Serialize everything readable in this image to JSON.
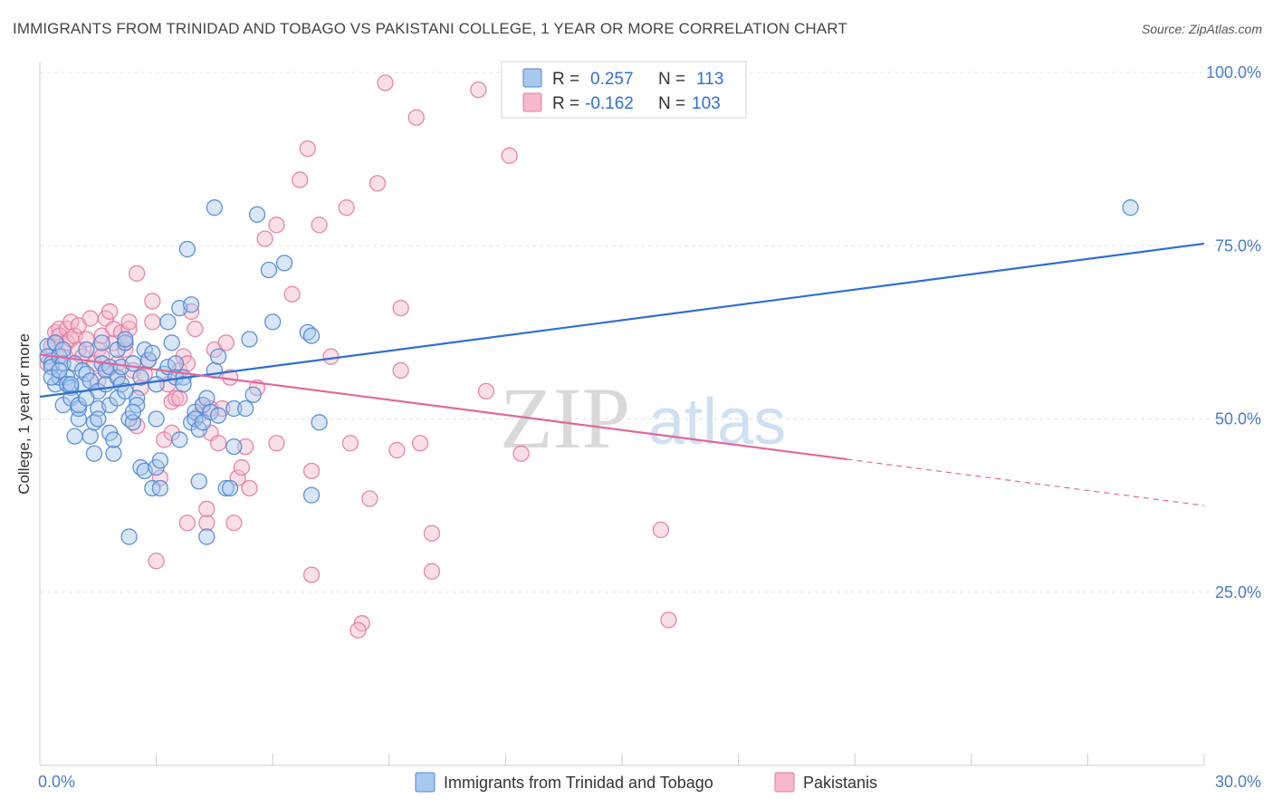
{
  "title": "IMMIGRANTS FROM TRINIDAD AND TOBAGO VS PAKISTANI COLLEGE, 1 YEAR OR MORE CORRELATION CHART",
  "source": "Source: ZipAtlas.com",
  "watermark": {
    "zip": "ZIP",
    "atlas": "atlas"
  },
  "colors": {
    "blue_fill": "#a9c8ee",
    "blue_stroke": "#4f86d3",
    "blue_line": "#2f6fd1",
    "pink_fill": "#f5b8cc",
    "pink_stroke": "#e27ba0",
    "pink_line": "#e0689a",
    "grid": "#e3e3e3",
    "tick_text": "#4a7cc9"
  },
  "legend_box": {
    "rows": [
      {
        "r_label": "R =",
        "r_value": "0.257",
        "n_label": "N =",
        "n_value": "113",
        "color": "blue"
      },
      {
        "r_label": "R =",
        "r_value": "-0.162",
        "n_label": "N =",
        "n_value": "103",
        "color": "pink"
      }
    ]
  },
  "bottom_legend": [
    {
      "label": "Immigrants from Trinidad and Tobago",
      "color": "blue"
    },
    {
      "label": "Pakistanis",
      "color": "pink"
    }
  ],
  "chart_data": {
    "type": "scatter",
    "xlabel": "",
    "ylabel": "College, 1 year or more",
    "xlim": [
      0,
      30
    ],
    "ylim": [
      0,
      105
    ],
    "x_tick_labels": [
      {
        "value": 0,
        "label": "0.0%"
      },
      {
        "value": 30,
        "label": "30.0%"
      }
    ],
    "y_tick_labels": [
      {
        "value": 25,
        "label": "25.0%"
      },
      {
        "value": 50,
        "label": "50.0%"
      },
      {
        "value": 75,
        "label": "75.0%"
      },
      {
        "value": 100,
        "label": "100.0%"
      }
    ],
    "x_minor_ticks": [
      0,
      3,
      6,
      9,
      12,
      15,
      18,
      21,
      24,
      27,
      30
    ],
    "grid": true,
    "series": [
      {
        "name": "Immigrants from Trinidad and Tobago",
        "color": "blue",
        "trend": {
          "x": [
            0,
            30
          ],
          "y": [
            53.2,
            75.3
          ],
          "dashed_from": null
        },
        "points": [
          [
            0.2,
            60.5
          ],
          [
            0.2,
            59
          ],
          [
            0.3,
            58
          ],
          [
            0.3,
            57.5
          ],
          [
            0.4,
            61
          ],
          [
            0.4,
            55
          ],
          [
            0.5,
            59
          ],
          [
            0.5,
            56
          ],
          [
            0.6,
            58
          ],
          [
            0.6,
            52
          ],
          [
            0.7,
            56
          ],
          [
            0.7,
            55
          ],
          [
            0.8,
            54.5
          ],
          [
            0.8,
            53
          ],
          [
            0.9,
            47.5
          ],
          [
            0.9,
            58
          ],
          [
            1.0,
            50
          ],
          [
            1.0,
            51.5
          ],
          [
            1.1,
            57
          ],
          [
            1.1,
            55
          ],
          [
            1.2,
            56.5
          ],
          [
            1.2,
            60
          ],
          [
            1.3,
            55.5
          ],
          [
            1.3,
            47.5
          ],
          [
            1.4,
            49.5
          ],
          [
            1.4,
            45
          ],
          [
            1.5,
            51.5
          ],
          [
            1.5,
            54
          ],
          [
            1.6,
            58
          ],
          [
            1.6,
            61
          ],
          [
            1.7,
            57
          ],
          [
            1.7,
            55
          ],
          [
            1.8,
            57.5
          ],
          [
            1.8,
            48
          ],
          [
            1.9,
            45
          ],
          [
            1.9,
            47
          ],
          [
            2.0,
            60
          ],
          [
            2.0,
            56
          ],
          [
            2.1,
            55
          ],
          [
            2.1,
            57.5
          ],
          [
            2.2,
            61
          ],
          [
            2.2,
            61.5
          ],
          [
            2.3,
            50
          ],
          [
            2.3,
            33
          ],
          [
            2.4,
            49.5
          ],
          [
            2.4,
            58
          ],
          [
            2.5,
            53
          ],
          [
            2.5,
            52
          ],
          [
            2.6,
            56
          ],
          [
            2.6,
            43
          ],
          [
            2.7,
            60
          ],
          [
            2.7,
            42.5
          ],
          [
            2.8,
            58.5
          ],
          [
            2.9,
            59.5
          ],
          [
            2.9,
            40
          ],
          [
            3.0,
            43
          ],
          [
            3.0,
            50
          ],
          [
            3.1,
            44
          ],
          [
            3.1,
            40
          ],
          [
            3.2,
            56.5
          ],
          [
            3.3,
            57.5
          ],
          [
            3.3,
            64
          ],
          [
            3.4,
            61
          ],
          [
            3.5,
            58
          ],
          [
            3.5,
            56
          ],
          [
            3.6,
            66
          ],
          [
            3.6,
            47
          ],
          [
            3.7,
            56
          ],
          [
            3.7,
            55
          ],
          [
            3.8,
            74.5
          ],
          [
            3.9,
            66.5
          ],
          [
            3.9,
            49.5
          ],
          [
            4.0,
            51
          ],
          [
            4.0,
            50
          ],
          [
            4.1,
            48.5
          ],
          [
            4.1,
            41
          ],
          [
            4.2,
            52
          ],
          [
            4.2,
            49.5
          ],
          [
            4.3,
            33
          ],
          [
            4.3,
            53
          ],
          [
            4.4,
            51
          ],
          [
            4.5,
            57
          ],
          [
            4.5,
            80.5
          ],
          [
            4.6,
            59
          ],
          [
            4.6,
            50.5
          ],
          [
            4.8,
            40
          ],
          [
            4.9,
            40
          ],
          [
            5.0,
            51.5
          ],
          [
            5.0,
            46
          ],
          [
            5.3,
            51.5
          ],
          [
            5.4,
            61.5
          ],
          [
            5.5,
            53.5
          ],
          [
            5.6,
            79.5
          ],
          [
            5.9,
            71.5
          ],
          [
            6.0,
            64
          ],
          [
            6.3,
            72.5
          ],
          [
            6.9,
            62.5
          ],
          [
            7.0,
            39
          ],
          [
            7.0,
            62
          ],
          [
            7.2,
            49.5
          ],
          [
            28.1,
            80.5
          ],
          [
            0.3,
            56
          ],
          [
            0.5,
            57
          ],
          [
            0.6,
            60
          ],
          [
            0.8,
            55
          ],
          [
            1.0,
            52
          ],
          [
            1.2,
            53
          ],
          [
            1.5,
            50
          ],
          [
            1.8,
            52
          ],
          [
            2.0,
            53
          ],
          [
            2.2,
            54
          ],
          [
            2.4,
            51
          ],
          [
            3.0,
            55
          ]
        ]
      },
      {
        "name": "Pakistanis",
        "color": "pink",
        "trend": {
          "x": [
            0,
            30
          ],
          "y": [
            59.3,
            37.5
          ],
          "dashed_from": 20.8
        },
        "points": [
          [
            0.2,
            58
          ],
          [
            0.3,
            60.5
          ],
          [
            0.4,
            61
          ],
          [
            0.4,
            62.5
          ],
          [
            0.5,
            63
          ],
          [
            0.5,
            62
          ],
          [
            0.6,
            59
          ],
          [
            0.7,
            61
          ],
          [
            0.7,
            63
          ],
          [
            0.8,
            64
          ],
          [
            0.8,
            61.5
          ],
          [
            0.9,
            62
          ],
          [
            1.0,
            63.5
          ],
          [
            1.0,
            60
          ],
          [
            1.1,
            59
          ],
          [
            1.2,
            61.5
          ],
          [
            1.3,
            64.5
          ],
          [
            1.4,
            58
          ],
          [
            1.5,
            60
          ],
          [
            1.5,
            55.5
          ],
          [
            1.6,
            62
          ],
          [
            1.6,
            59
          ],
          [
            1.7,
            57
          ],
          [
            1.7,
            64.5
          ],
          [
            1.8,
            65.5
          ],
          [
            1.9,
            61
          ],
          [
            1.9,
            63
          ],
          [
            2.0,
            56
          ],
          [
            2.0,
            58
          ],
          [
            2.1,
            62.5
          ],
          [
            2.2,
            60
          ],
          [
            2.2,
            61
          ],
          [
            2.3,
            63
          ],
          [
            2.3,
            64
          ],
          [
            2.4,
            57
          ],
          [
            2.5,
            71
          ],
          [
            2.5,
            49
          ],
          [
            2.6,
            54.5
          ],
          [
            2.7,
            56.5
          ],
          [
            2.8,
            58.5
          ],
          [
            2.9,
            64
          ],
          [
            2.9,
            67
          ],
          [
            3.0,
            29.5
          ],
          [
            3.1,
            41.5
          ],
          [
            3.2,
            47
          ],
          [
            3.3,
            55
          ],
          [
            3.4,
            52.5
          ],
          [
            3.4,
            48
          ],
          [
            3.5,
            53
          ],
          [
            3.6,
            53
          ],
          [
            3.6,
            57
          ],
          [
            3.7,
            59
          ],
          [
            3.8,
            58
          ],
          [
            3.8,
            35
          ],
          [
            3.9,
            65.5
          ],
          [
            4.0,
            63
          ],
          [
            4.1,
            50.5
          ],
          [
            4.2,
            52
          ],
          [
            4.3,
            35
          ],
          [
            4.3,
            37
          ],
          [
            4.4,
            48
          ],
          [
            4.4,
            51.5
          ],
          [
            4.5,
            60
          ],
          [
            4.6,
            46.5
          ],
          [
            4.7,
            51.5
          ],
          [
            4.8,
            61
          ],
          [
            4.9,
            56
          ],
          [
            5.0,
            35
          ],
          [
            5.1,
            41.5
          ],
          [
            5.2,
            43
          ],
          [
            5.3,
            46
          ],
          [
            5.4,
            40
          ],
          [
            5.6,
            54.5
          ],
          [
            5.8,
            76
          ],
          [
            6.1,
            78
          ],
          [
            6.1,
            46.5
          ],
          [
            6.5,
            68
          ],
          [
            6.7,
            84.5
          ],
          [
            6.9,
            89
          ],
          [
            7.0,
            42.5
          ],
          [
            7.2,
            78
          ],
          [
            7.5,
            59
          ],
          [
            7.9,
            80.5
          ],
          [
            8.0,
            46.5
          ],
          [
            8.5,
            38.5
          ],
          [
            8.7,
            84
          ],
          [
            8.9,
            98.5
          ],
          [
            9.2,
            45.5
          ],
          [
            9.3,
            66
          ],
          [
            9.3,
            57
          ],
          [
            9.7,
            93.5
          ],
          [
            9.8,
            46.5
          ],
          [
            10.1,
            33.5
          ],
          [
            10.1,
            28
          ],
          [
            11.3,
            97.5
          ],
          [
            11.5,
            54
          ],
          [
            12.1,
            88
          ],
          [
            12.4,
            45
          ],
          [
            16.0,
            34
          ],
          [
            16.2,
            21
          ],
          [
            7.0,
            27.5
          ],
          [
            8.3,
            20.5
          ],
          [
            8.2,
            19.5
          ]
        ]
      }
    ]
  }
}
